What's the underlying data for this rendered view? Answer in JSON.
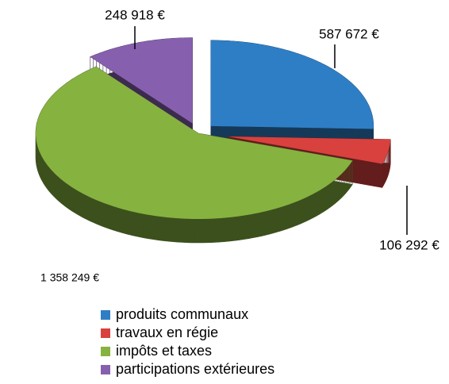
{
  "chart_data": {
    "type": "pie",
    "categories": [
      "produits communaux",
      "travaux en régie",
      "impôts et taxes",
      "participations extérieures"
    ],
    "values": [
      587672,
      106292,
      1358249,
      248918
    ],
    "value_labels": [
      "587 672 €",
      "106 292 €",
      "1 358 249 €",
      "248 918 €"
    ],
    "colors": [
      "#2e7ec6",
      "#d9413e",
      "#86b240",
      "#8660ae"
    ],
    "legend": "bottom"
  }
}
